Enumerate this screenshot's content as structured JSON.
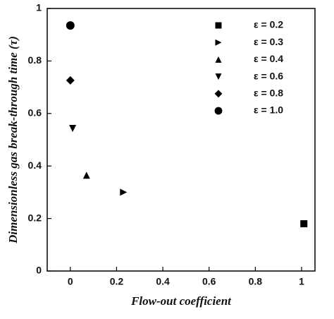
{
  "chart_data": {
    "type": "scatter",
    "x_label": "Flow-out coefficient",
    "y_label": "Dimensionless gas break-through time (τ)",
    "xlim": [
      -0.1,
      1.058
    ],
    "ylim": [
      0,
      1
    ],
    "xticks": [
      0,
      0.2,
      0.4,
      0.6,
      0.8,
      1
    ],
    "yticks": [
      0,
      0.2,
      0.4,
      0.6,
      0.8,
      1
    ],
    "legend": "upper right",
    "series": [
      {
        "name": "ε = 0.2",
        "marker": "square",
        "color": "#000000",
        "x": [
          1.01
        ],
        "y": [
          0.18
        ]
      },
      {
        "name": "ε = 0.3",
        "marker": "triangle-right",
        "color": "#000000",
        "x": [
          0.23
        ],
        "y": [
          0.3
        ]
      },
      {
        "name": "ε = 0.4",
        "marker": "triangle-up",
        "color": "#000000",
        "x": [
          0.07
        ],
        "y": [
          0.365
        ]
      },
      {
        "name": "ε = 0.6",
        "marker": "triangle-down",
        "color": "#000000",
        "x": [
          0.01
        ],
        "y": [
          0.543
        ]
      },
      {
        "name": "ε = 0.8",
        "marker": "diamond",
        "color": "#000000",
        "x": [
          0
        ],
        "y": [
          0.726
        ]
      },
      {
        "name": "ε = 1.0",
        "marker": "circle",
        "color": "#000000",
        "x": [
          0
        ],
        "y": [
          0.935
        ]
      }
    ]
  }
}
